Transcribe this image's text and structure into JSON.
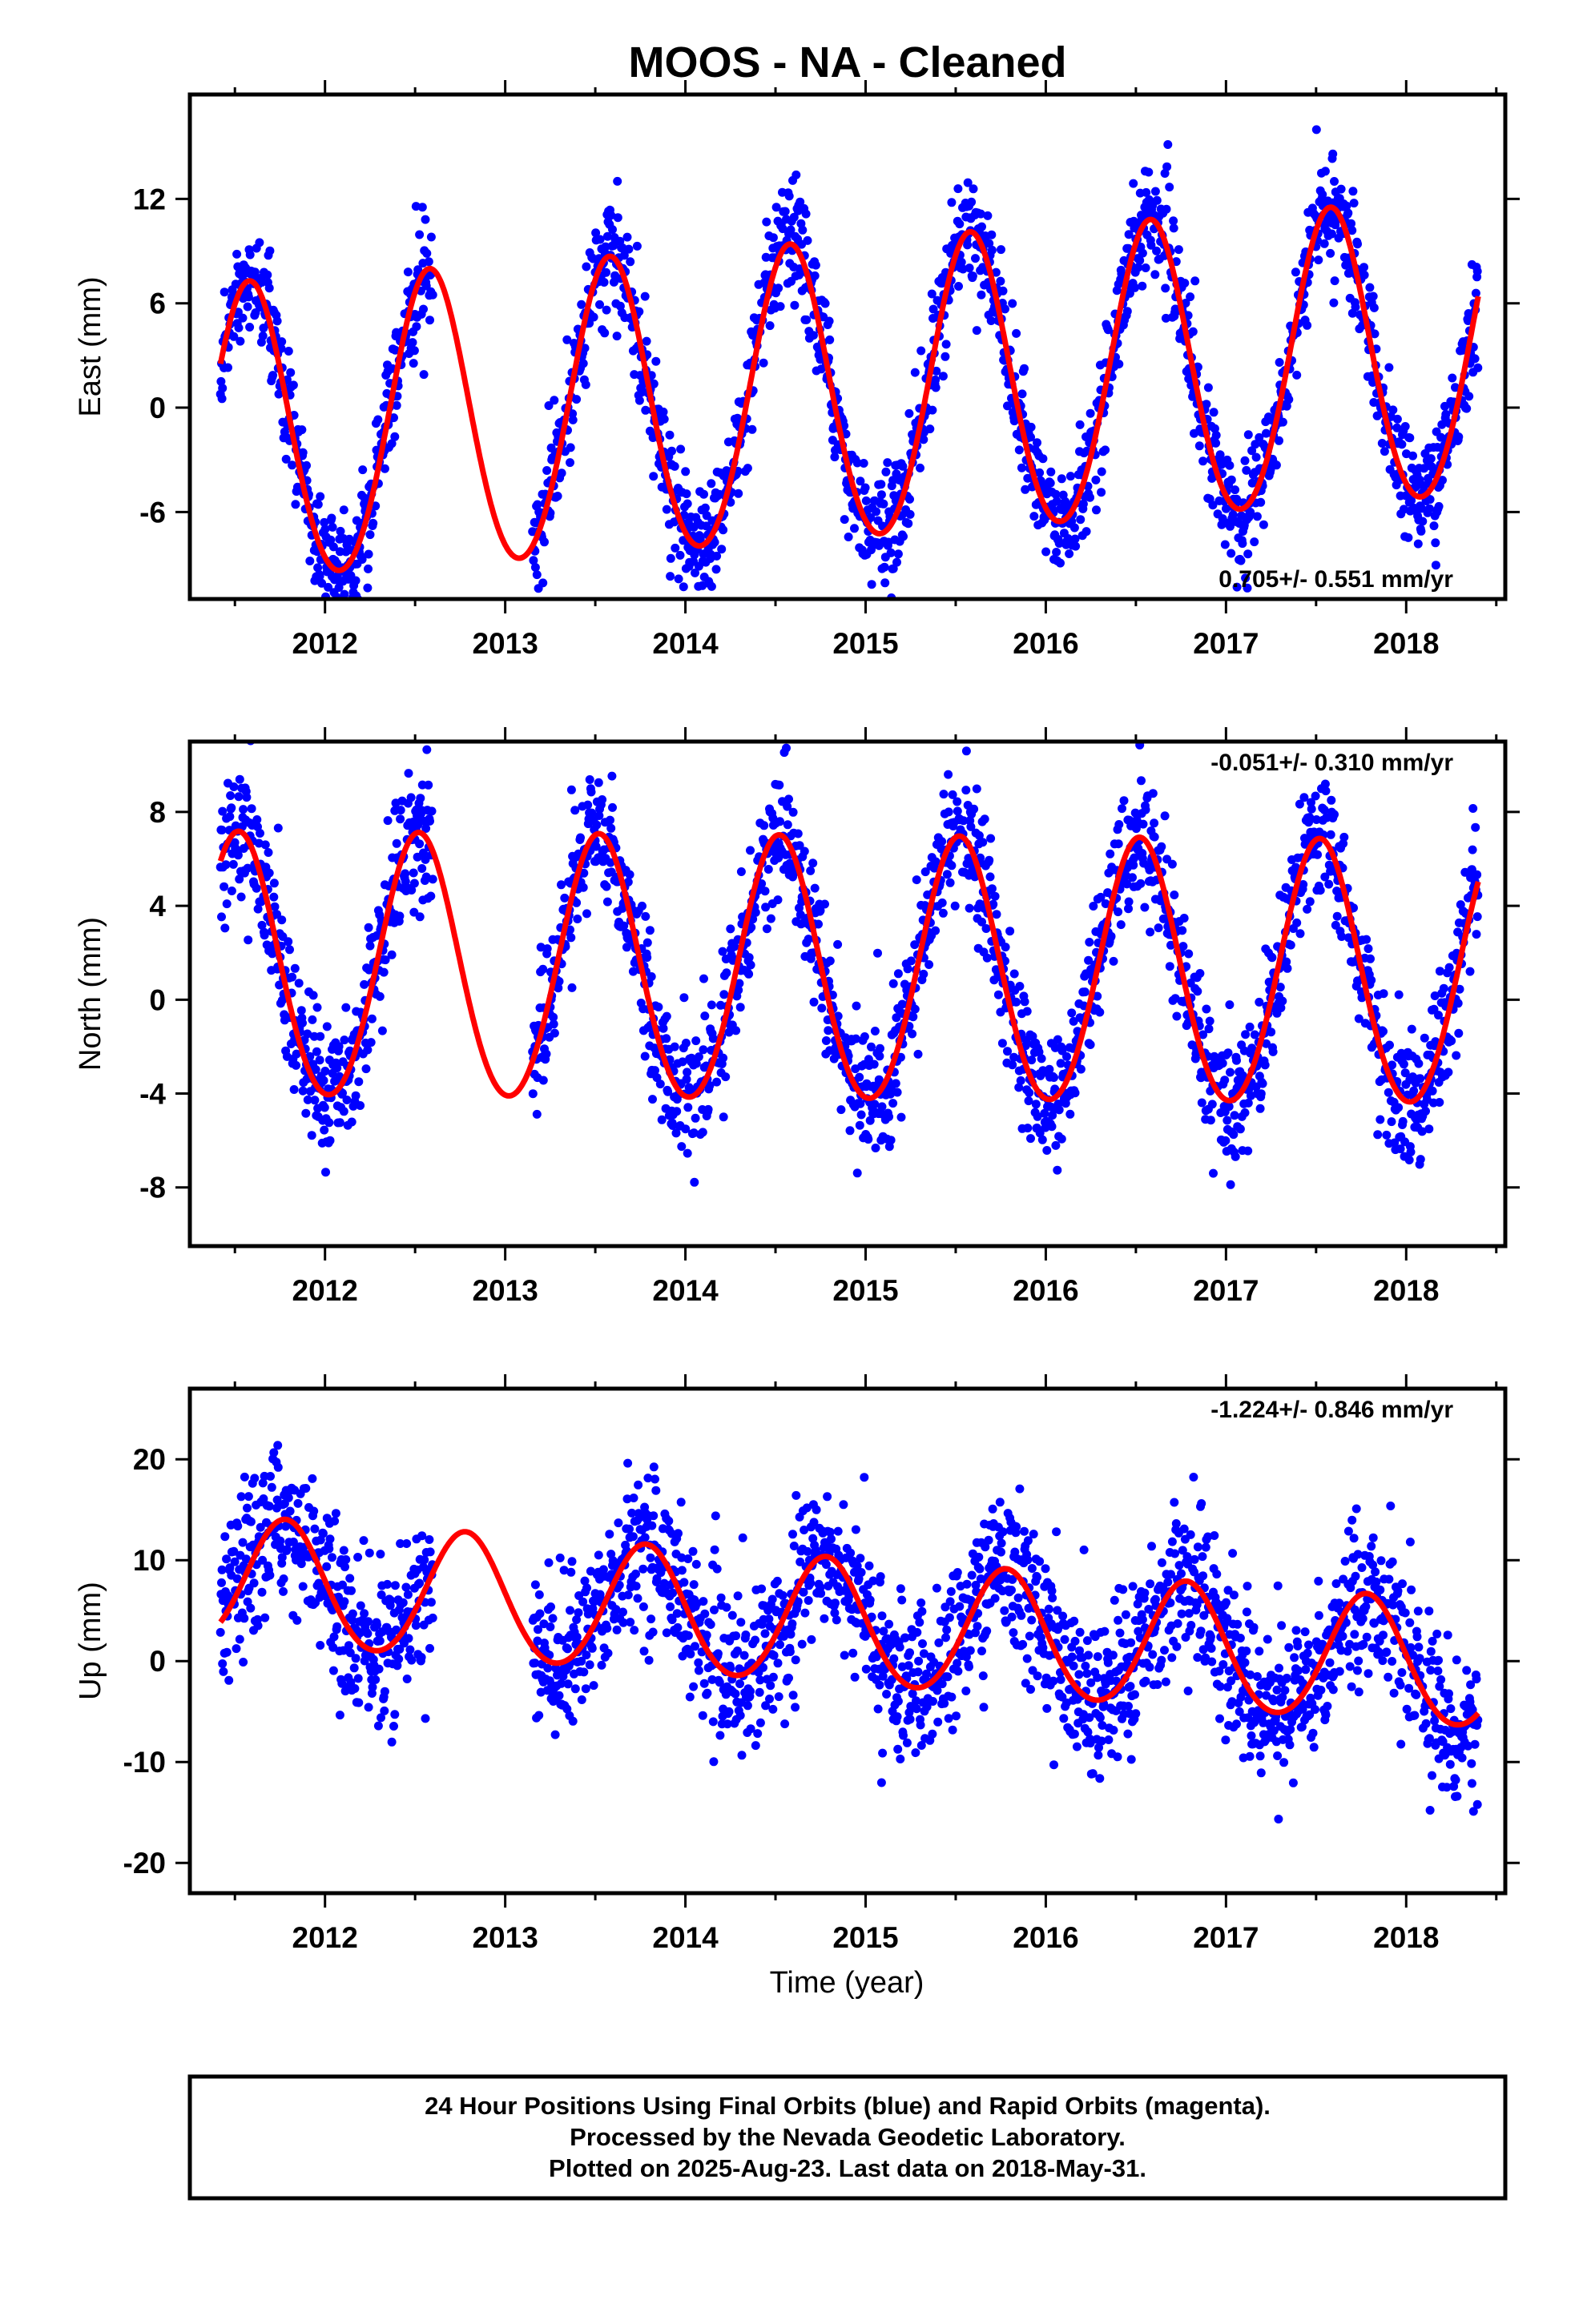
{
  "title": "MOOS  - NA - Cleaned",
  "xlabel": "Time (year)",
  "colors": {
    "data": "#0000ff",
    "model": "#ff0000",
    "frame": "#000000"
  },
  "chart_data": [
    {
      "type": "scatter",
      "ylabel": "East (mm)",
      "rate_label": "0.705+/- 0.551 mm/yr",
      "xlim": [
        2011.25,
        2018.55
      ],
      "ylim": [
        -11,
        18
      ],
      "x_ticks": [
        2012,
        2013,
        2014,
        2015,
        2016,
        2017,
        2018
      ],
      "x_tick_labels": [
        "2012",
        "2013",
        "2014",
        "2015",
        "2016",
        "2017",
        "2018"
      ],
      "y_ticks": [
        -6,
        0,
        6,
        12
      ],
      "y_tick_labels": [
        "-6",
        "0",
        "6",
        "12"
      ],
      "data_range": [
        2011.42,
        2018.4
      ],
      "gap": [
        2012.6,
        2013.15
      ],
      "model": {
        "offset": 0.7,
        "rate": 0.705,
        "annual_amplitude": 8.5,
        "annual_phase_peak": 0.58,
        "semiannual_amplitude": 0.5,
        "trend_ref_year": 2015.0
      },
      "scatter_sigma": 1.6,
      "series": [
        {
          "name": "24 Hour Positions Using Final Orbits (blue)",
          "role": "points"
        },
        {
          "name": "model",
          "role": "line"
        }
      ]
    },
    {
      "type": "scatter",
      "ylabel": "North (mm)",
      "rate_label": "-0.051+/- 0.310 mm/yr",
      "xlim": [
        2011.25,
        2018.55
      ],
      "ylim": [
        -10.5,
        11
      ],
      "x_ticks": [
        2012,
        2013,
        2014,
        2015,
        2016,
        2017,
        2018
      ],
      "x_tick_labels": [
        "2012",
        "2013",
        "2014",
        "2015",
        "2016",
        "2017",
        "2018"
      ],
      "y_ticks": [
        -8,
        -4,
        0,
        4,
        8
      ],
      "y_tick_labels": [
        "-8",
        "-4",
        "0",
        "4",
        "8"
      ],
      "data_range": [
        2011.42,
        2018.4
      ],
      "gap": [
        2012.6,
        2013.15
      ],
      "model": {
        "offset": 1.1,
        "rate": -0.051,
        "annual_amplitude": 5.6,
        "annual_phase_peak": 0.52,
        "semiannual_amplitude": 0.3,
        "trend_ref_year": 2015.0
      },
      "scatter_sigma": 1.4,
      "series": [
        {
          "name": "24 Hour Positions Using Final Orbits (blue)",
          "role": "points"
        },
        {
          "name": "model",
          "role": "line"
        }
      ]
    },
    {
      "type": "scatter",
      "ylabel": "Up (mm)",
      "rate_label": "-1.224+/- 0.846 mm/yr",
      "xlim": [
        2011.25,
        2018.55
      ],
      "ylim": [
        -23,
        27
      ],
      "x_ticks": [
        2012,
        2013,
        2014,
        2015,
        2016,
        2017,
        2018
      ],
      "x_tick_labels": [
        "2012",
        "2013",
        "2014",
        "2015",
        "2016",
        "2017",
        "2018"
      ],
      "y_ticks": [
        -20,
        -10,
        0,
        10,
        20
      ],
      "y_tick_labels": [
        "-20",
        "-10",
        "0",
        "10",
        "20"
      ],
      "data_range": [
        2011.42,
        2018.4
      ],
      "gap": [
        2012.6,
        2013.15
      ],
      "model": {
        "offset": 3.5,
        "rate": -1.224,
        "annual_amplitude": 6.2,
        "annual_phase_peak": 0.78,
        "semiannual_amplitude": 0.4,
        "trend_ref_year": 2015.0
      },
      "scatter_sigma": 3.8,
      "series": [
        {
          "name": "24 Hour Positions Using Final Orbits (blue)",
          "role": "points"
        },
        {
          "name": "model",
          "role": "line"
        }
      ]
    }
  ],
  "footer": {
    "line1": "24 Hour Positions Using Final Orbits (blue) and Rapid Orbits (magenta).",
    "line2": "Processed by the Nevada Geodetic Laboratory.",
    "line3": "Plotted on 2025-Aug-23. Last data on 2018-May-31."
  }
}
